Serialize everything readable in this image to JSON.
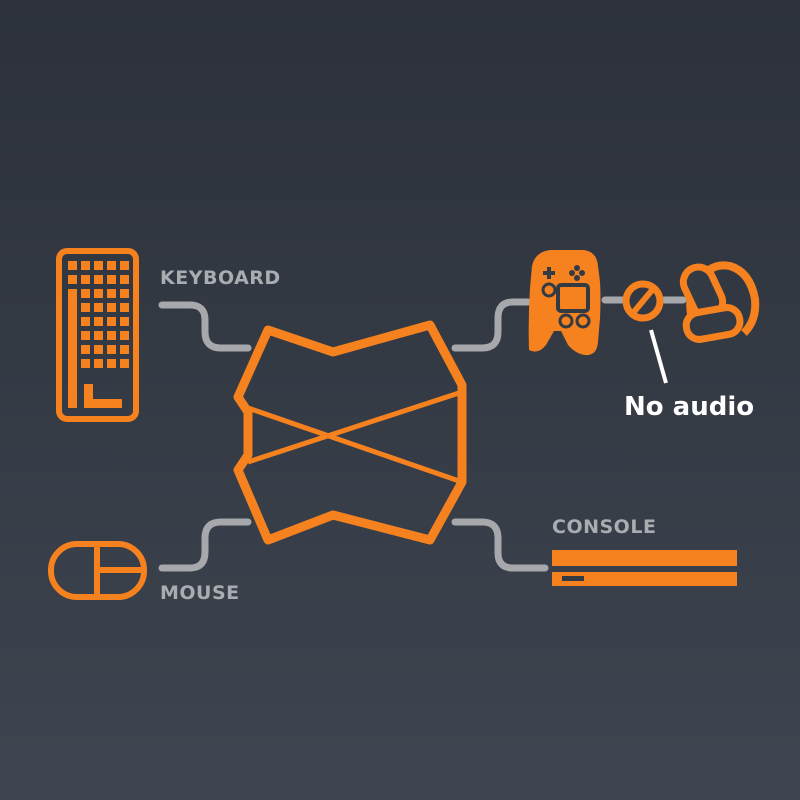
{
  "colors": {
    "accent": "#f5821f",
    "connector": "#a6a8ab",
    "label": "#a9acb1",
    "callout": "#ffffff"
  },
  "labels": {
    "keyboard": "KEYBOARD",
    "mouse": "MOUSE",
    "console": "CONSOLE",
    "no_audio": "No audio"
  },
  "icons": [
    "keyboard-icon",
    "mouse-icon",
    "adapter-hub-icon",
    "gamepad-icon",
    "no-audio-icon",
    "headset-icon",
    "console-icon"
  ]
}
